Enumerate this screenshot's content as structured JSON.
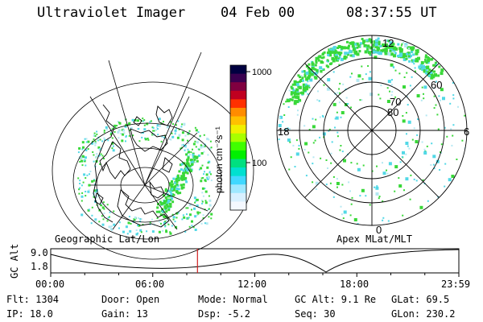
{
  "header": {
    "instrument": "Ultraviolet Imager",
    "date": "04 Feb 00",
    "time": "08:37:55 UT"
  },
  "colorbar": {
    "unit_label": "photon cm⁻²s⁻¹",
    "ticks": [
      "1000",
      "100"
    ],
    "colors": [
      "#000040",
      "#3a0050",
      "#800040",
      "#c00020",
      "#ff3000",
      "#ff8c00",
      "#ffc000",
      "#f0f000",
      "#a8ff00",
      "#40ff00",
      "#00f000",
      "#00e080",
      "#00e0d0",
      "#40d8ff",
      "#a0e8ff",
      "#d8f0ff",
      "#f4f8ff"
    ]
  },
  "left_map": {
    "caption": "Geographic Lat/Lon"
  },
  "right_map": {
    "caption": "Apex MLat/MLT",
    "lat_labels": [
      "80",
      "70",
      "60"
    ],
    "mlt_labels": [
      "12",
      "18",
      "6",
      "0"
    ]
  },
  "timeline": {
    "axis_label": "GC Alt",
    "y_ticks": [
      "9.0",
      "1.8"
    ],
    "x_ticks": [
      "00:00",
      "06:00",
      "12:00",
      "18:00",
      "23:59"
    ],
    "current_time_hours": 8.63,
    "marker_color": "#d02020"
  },
  "info": {
    "flt": "Flt: 1304",
    "door": "Door: Open",
    "mode": "Mode: Normal",
    "gcalt": "GC Alt: 9.1 Re",
    "glat": "GLat:   69.5",
    "ip": "IP: 18.0",
    "gain": "Gain: 13",
    "dsp": "Dsp:    -5.2",
    "seq": "Seq: 30",
    "glon": "GLon: 230.2"
  },
  "colors": {
    "aurora_green": "#39d839",
    "aurora_cyan": "#52d8e6",
    "aurora_light": "#b4e8f2"
  }
}
